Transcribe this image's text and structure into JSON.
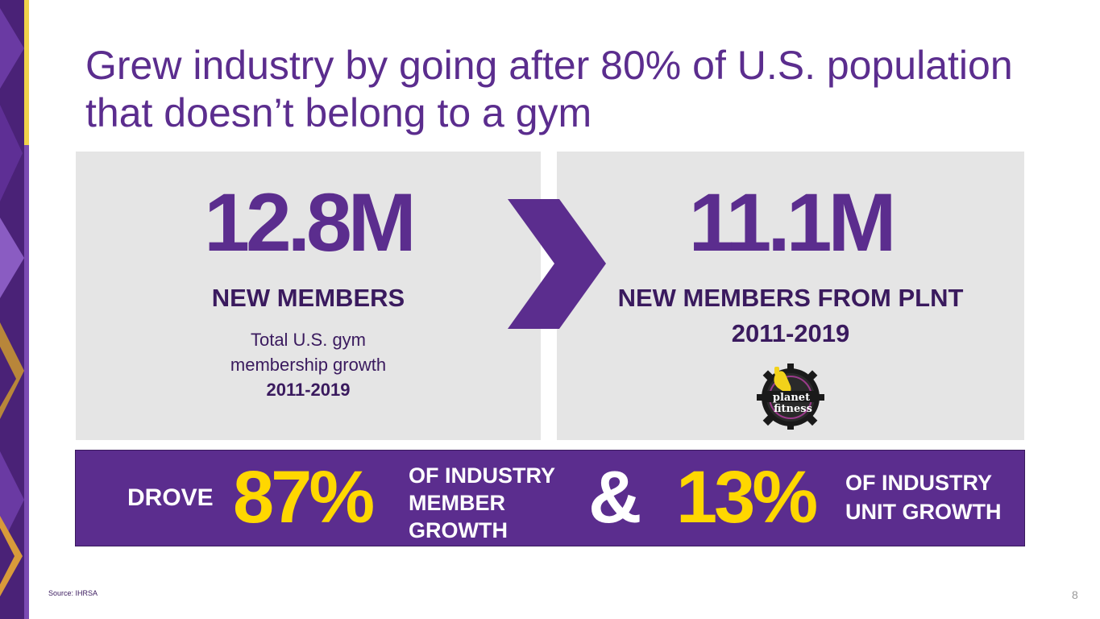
{
  "slide": {
    "title_line1": "Grew industry by going after 80% of U.S. population",
    "title_line2": "that doesn’t belong to a gym"
  },
  "left_panel": {
    "value": "12.8M",
    "heading": "NEW MEMBERS",
    "desc_line1": "Total U.S. gym",
    "desc_line2": "membership growth",
    "desc_years": "2011-2019"
  },
  "right_panel": {
    "value": "11.1M",
    "heading_line1": "NEW MEMBERS FROM PLNT",
    "heading_line2": "2011-2019",
    "logo_text_line1": "planet",
    "logo_text_line2": "fitness"
  },
  "banner": {
    "prefix": "DROVE",
    "pct1": "87%",
    "desc1_line1": "OF INDUSTRY",
    "desc1_line2": "MEMBER",
    "desc1_line3": "GROWTH",
    "amp": "&",
    "pct2": "13%",
    "desc2_line1": "OF INDUSTRY",
    "desc2_line2": "UNIT GROWTH"
  },
  "footer": {
    "source": "Source: IHRSA",
    "page_number": "8"
  },
  "colors": {
    "brand_purple": "#5b2d8e",
    "accent_yellow": "#ffd700",
    "panel_gray": "#e5e5e5"
  }
}
